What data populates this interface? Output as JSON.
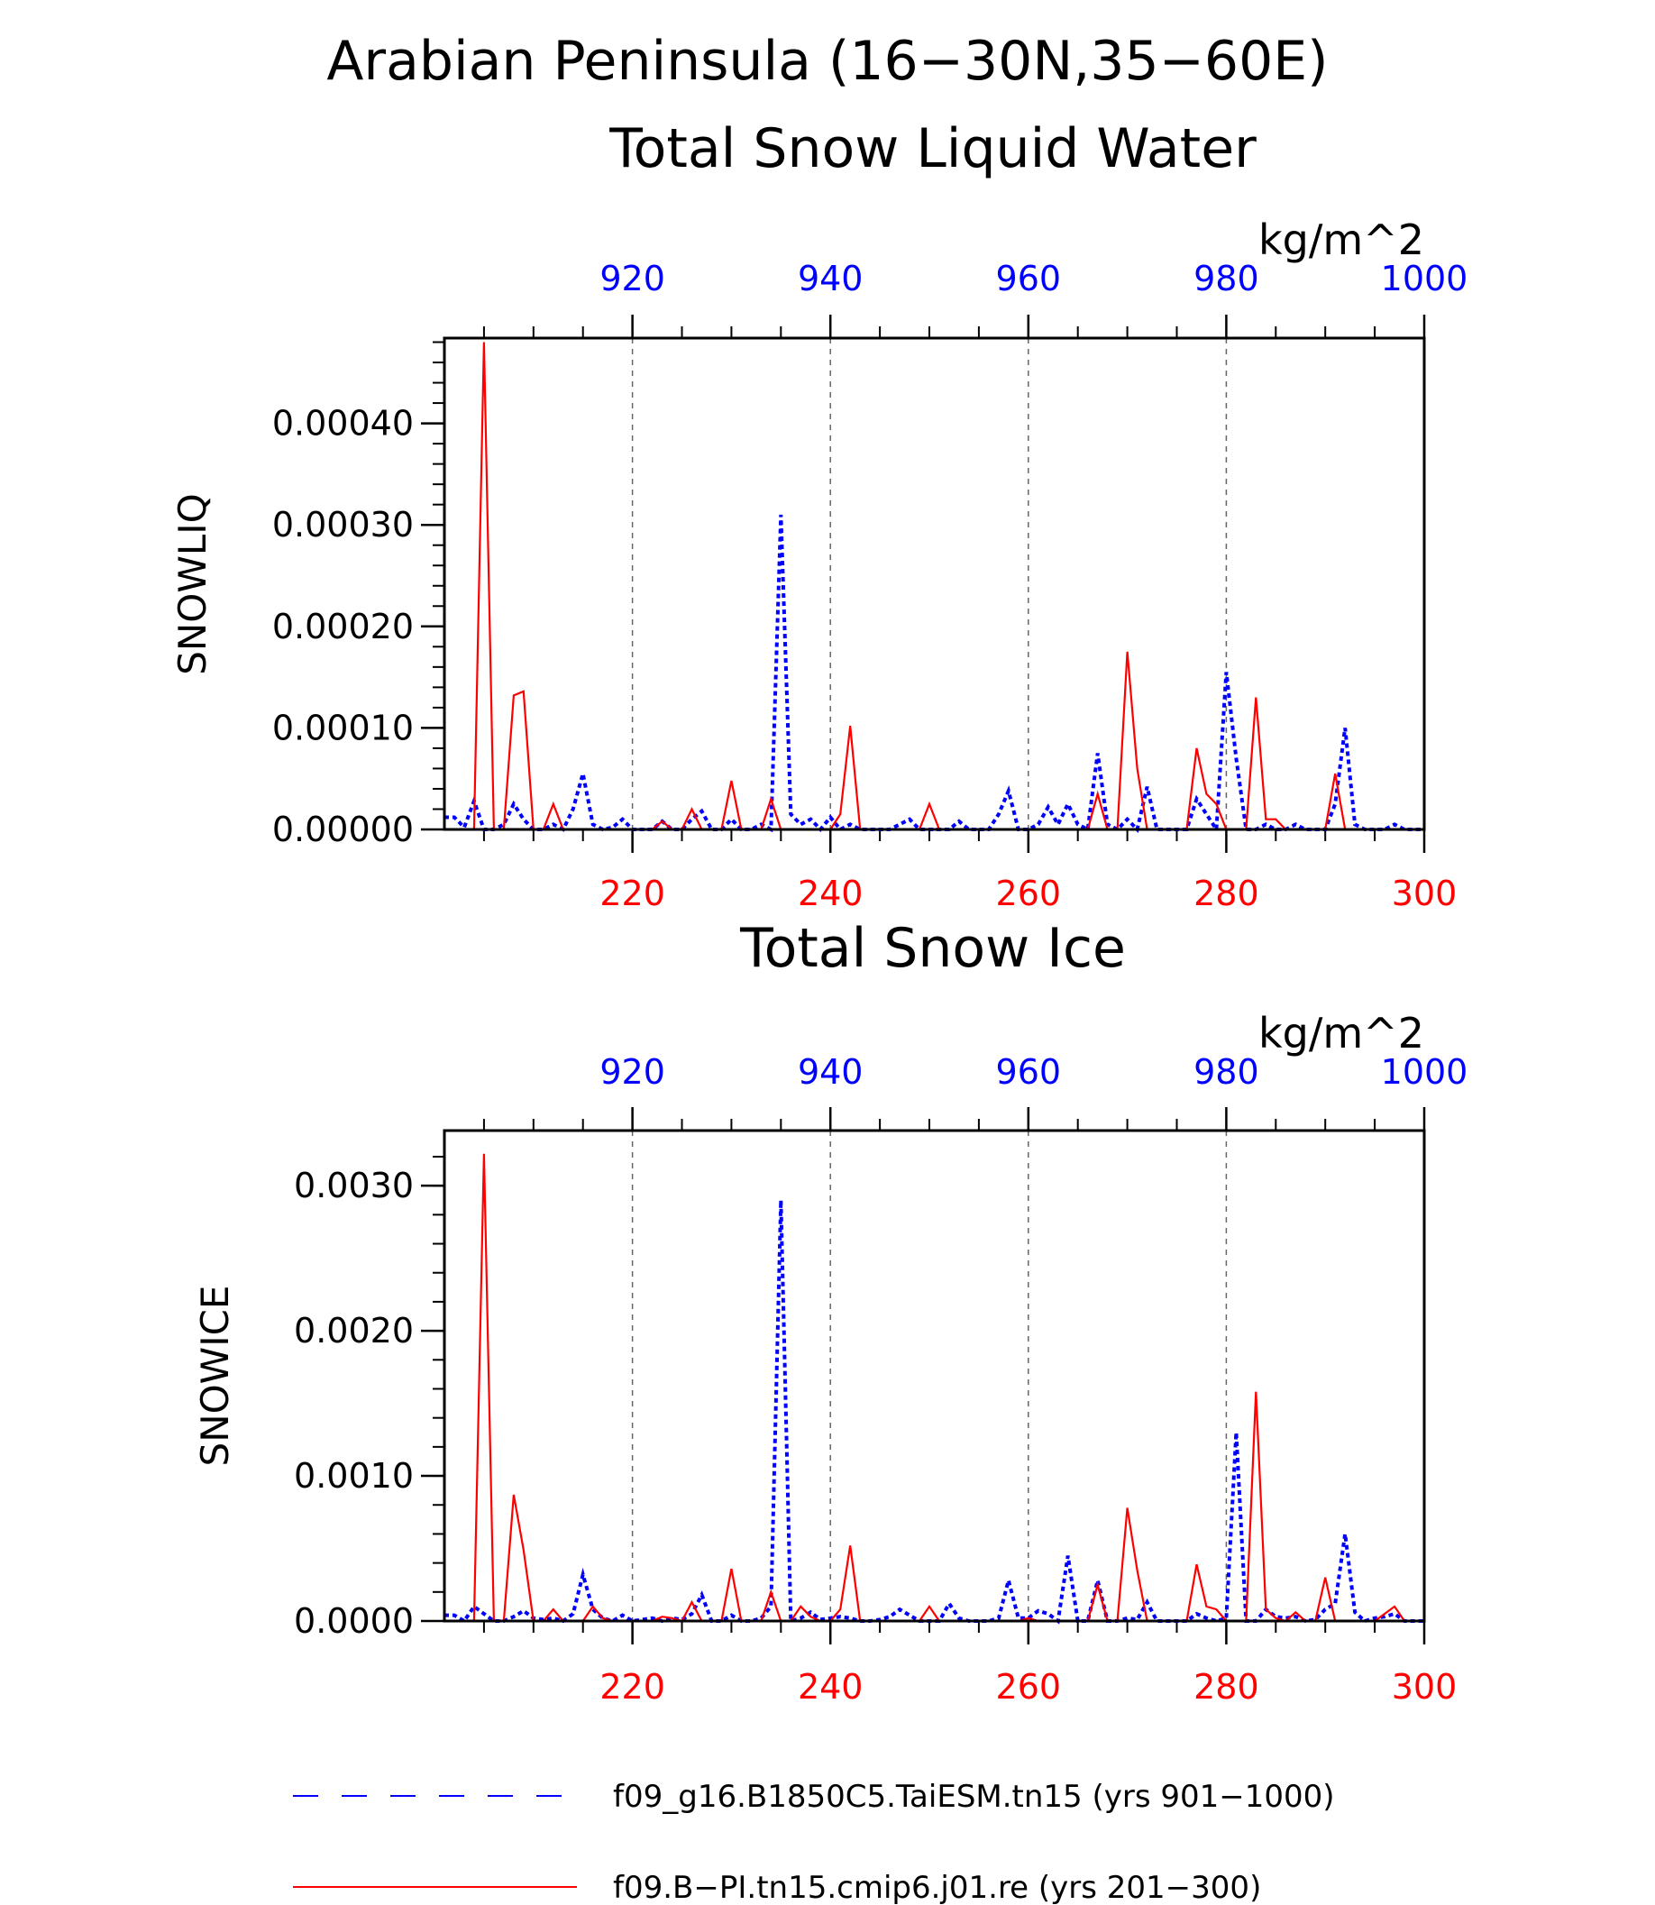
{
  "figure": {
    "title_line1": "Arabian Peninsula (16−30N,35−60E)",
    "colors": {
      "blue": "#0000ff",
      "red": "#ff0000",
      "black": "#000000",
      "grid": "#666666"
    }
  },
  "legend": [
    {
      "label": "f09_g16.B1850C5.TaiESM.tn15 (yrs 901−1000)",
      "color": "#0000ff",
      "style": "dashed"
    },
    {
      "label": "f09.B−PI.tn15.cmip6.j01.re (yrs 201−300)",
      "color": "#ff0000",
      "style": "solid"
    }
  ],
  "chart_data": [
    {
      "type": "line",
      "title": "Total Snow Liquid Water",
      "units": "kg/m^2",
      "ylabel": "SNOWLIQ",
      "ylim": [
        0,
        0.000484
      ],
      "yticks": [
        "0.00000",
        "0.00010",
        "0.00020",
        "0.00030",
        "0.00040"
      ],
      "ytick_values": [
        0,
        0.0001,
        0.0002,
        0.0003,
        0.0004
      ],
      "x_bottom": {
        "lim": [
          201,
          300
        ],
        "ticks": [
          220,
          240,
          260,
          280,
          300
        ],
        "color": "#ff0000"
      },
      "x_top": {
        "lim": [
          901,
          1000
        ],
        "ticks": [
          920,
          940,
          960,
          980,
          1000
        ],
        "color": "#0000ff"
      },
      "grid": "vertical dashed at major x ticks",
      "series": [
        {
          "name": "f09_g16.B1850C5.TaiESM.tn15 (yrs 901−1000)",
          "axis": "top",
          "color": "#0000ff",
          "style": "dashed",
          "x": [
            901,
            902,
            903,
            904,
            905,
            906,
            907,
            908,
            909,
            910,
            911,
            912,
            913,
            914,
            915,
            916,
            917,
            918,
            919,
            920,
            921,
            922,
            923,
            924,
            925,
            926,
            927,
            928,
            929,
            930,
            931,
            932,
            933,
            934,
            935,
            936,
            937,
            938,
            939,
            940,
            941,
            942,
            943,
            944,
            945,
            946,
            947,
            948,
            949,
            950,
            951,
            952,
            953,
            954,
            955,
            956,
            957,
            958,
            959,
            960,
            961,
            962,
            963,
            964,
            965,
            966,
            967,
            968,
            969,
            970,
            971,
            972,
            973,
            974,
            975,
            976,
            977,
            978,
            979,
            980,
            981,
            982,
            983,
            984,
            985,
            986,
            987,
            988,
            989,
            990,
            991,
            992,
            993,
            994,
            995,
            996,
            997,
            998,
            999,
            1000
          ],
          "values": [
            1.2e-05,
            1.2e-05,
            2e-06,
            2.8e-05,
            0,
            0,
            5e-06,
            2.5e-05,
            1e-05,
            0,
            0,
            5e-06,
            0,
            2e-05,
            5.5e-05,
            5e-06,
            0,
            2e-06,
            1e-05,
            0,
            0,
            0,
            8e-06,
            0,
            0,
            1e-05,
            1.8e-05,
            0,
            0,
            1e-05,
            0,
            0,
            5e-06,
            0,
            0.00031,
            1.5e-05,
            5e-06,
            1e-05,
            0,
            1.2e-05,
            0,
            5e-06,
            0,
            0,
            0,
            0,
            5e-06,
            1e-05,
            0,
            0,
            0,
            0,
            8e-06,
            0,
            0,
            0,
            1.5e-05,
            3.8e-05,
            0,
            0,
            5e-06,
            2.2e-05,
            5e-06,
            2.5e-05,
            5e-06,
            0,
            7.5e-05,
            5e-06,
            0,
            1e-05,
            0,
            4.2e-05,
            0,
            0,
            0,
            0,
            3e-05,
            1.5e-05,
            0,
            0.000155,
            7e-05,
            0,
            0,
            5e-06,
            0,
            0,
            5e-06,
            0,
            0,
            0,
            2.5e-05,
            0.0001,
            5e-06,
            0,
            0,
            0,
            5e-06,
            0,
            0,
            0
          ]
        },
        {
          "name": "f09.B−PI.tn15.cmip6.j01.re (yrs 201−300)",
          "axis": "bottom",
          "color": "#ff0000",
          "style": "solid",
          "x": [
            201,
            202,
            203,
            204,
            205,
            206,
            207,
            208,
            209,
            210,
            211,
            212,
            213,
            214,
            215,
            216,
            217,
            218,
            219,
            220,
            221,
            222,
            223,
            224,
            225,
            226,
            227,
            228,
            229,
            230,
            231,
            232,
            233,
            234,
            235,
            236,
            237,
            238,
            239,
            240,
            241,
            242,
            243,
            244,
            245,
            246,
            247,
            248,
            249,
            250,
            251,
            252,
            253,
            254,
            255,
            256,
            257,
            258,
            259,
            260,
            261,
            262,
            263,
            264,
            265,
            266,
            267,
            268,
            269,
            270,
            271,
            272,
            273,
            274,
            275,
            276,
            277,
            278,
            279,
            280,
            281,
            282,
            283,
            284,
            285,
            286,
            287,
            288,
            289,
            290,
            291,
            292,
            293,
            294,
            295,
            296,
            297,
            298,
            299,
            300
          ],
          "values": [
            0,
            0,
            0,
            0,
            0.00048,
            0,
            0,
            0.000132,
            0.000136,
            0,
            0,
            2.5e-05,
            0,
            0,
            0,
            0,
            0,
            0,
            0,
            0,
            0,
            0,
            8e-06,
            0,
            0,
            2e-05,
            0,
            0,
            0,
            4.8e-05,
            0,
            0,
            0,
            3e-05,
            0,
            0,
            0,
            0,
            0,
            0,
            1.5e-05,
            0.000102,
            0,
            0,
            0,
            0,
            0,
            0,
            0,
            2.5e-05,
            0,
            0,
            0,
            0,
            0,
            0,
            0,
            0,
            0,
            0,
            0,
            0,
            0,
            0,
            0,
            0,
            3.5e-05,
            0,
            0,
            0.000175,
            6e-05,
            0,
            0,
            0,
            0,
            0,
            8e-05,
            3.5e-05,
            2.5e-05,
            0,
            0,
            0,
            0.00013,
            1e-05,
            1e-05,
            0,
            0,
            0,
            0,
            0,
            5.5e-05,
            0,
            0,
            0,
            0,
            0,
            0,
            0,
            0,
            0
          ]
        }
      ]
    },
    {
      "type": "line",
      "title": "Total Snow Ice",
      "units": "kg/m^2",
      "ylabel": "SNOWICE",
      "ylim": [
        0,
        0.00338
      ],
      "yticks": [
        "0.0000",
        "0.0010",
        "0.0020",
        "0.0030"
      ],
      "ytick_values": [
        0,
        0.001,
        0.002,
        0.003
      ],
      "x_bottom": {
        "lim": [
          201,
          300
        ],
        "ticks": [
          220,
          240,
          260,
          280,
          300
        ],
        "color": "#ff0000"
      },
      "x_top": {
        "lim": [
          901,
          1000
        ],
        "ticks": [
          920,
          940,
          960,
          980,
          1000
        ],
        "color": "#0000ff"
      },
      "grid": "vertical dashed at major x ticks",
      "series": [
        {
          "name": "f09_g16.B1850C5.TaiESM.tn15 (yrs 901−1000)",
          "axis": "top",
          "color": "#0000ff",
          "style": "dashed",
          "x": [
            901,
            902,
            903,
            904,
            905,
            906,
            907,
            908,
            909,
            910,
            911,
            912,
            913,
            914,
            915,
            916,
            917,
            918,
            919,
            920,
            921,
            922,
            923,
            924,
            925,
            926,
            927,
            928,
            929,
            930,
            931,
            932,
            933,
            934,
            935,
            936,
            937,
            938,
            939,
            940,
            941,
            942,
            943,
            944,
            945,
            946,
            947,
            948,
            949,
            950,
            951,
            952,
            953,
            954,
            955,
            956,
            957,
            958,
            959,
            960,
            961,
            962,
            963,
            964,
            965,
            966,
            967,
            968,
            969,
            970,
            971,
            972,
            973,
            974,
            975,
            976,
            977,
            978,
            979,
            980,
            981,
            982,
            983,
            984,
            985,
            986,
            987,
            988,
            989,
            990,
            991,
            992,
            993,
            994,
            995,
            996,
            997,
            998,
            999,
            1000
          ],
          "values": [
            4e-05,
            4e-05,
            0,
            0.0001,
            5e-05,
            0,
            0,
            3e-05,
            7e-05,
            2e-05,
            1e-05,
            2e-05,
            0,
            5e-05,
            0.00032,
            8e-05,
            2e-05,
            0,
            4e-05,
            0,
            1e-05,
            2e-05,
            0,
            2e-05,
            1e-05,
            5e-05,
            0.00018,
            0,
            0,
            4e-05,
            0,
            0,
            2e-05,
            0.0001,
            0.0029,
            0,
            2e-05,
            6e-05,
            1e-05,
            2e-05,
            3e-05,
            2e-05,
            0,
            0,
            1e-05,
            3e-05,
            8e-05,
            4e-05,
            0,
            0,
            0,
            0.00012,
            2e-05,
            0,
            0,
            0,
            2e-05,
            0.00028,
            2e-05,
            2e-05,
            7e-05,
            5e-05,
            0,
            0.00045,
            0,
            0,
            0.00028,
            0,
            0,
            2e-05,
            1e-05,
            0.00013,
            0,
            0,
            0,
            0,
            5e-05,
            2e-05,
            0,
            2e-05,
            0.0013,
            0,
            0,
            8e-05,
            3e-05,
            2e-05,
            3e-05,
            0,
            1e-05,
            8e-05,
            0.00012,
            0.0006,
            6e-05,
            0,
            2e-05,
            3e-05,
            5e-05,
            0,
            0,
            0
          ]
        },
        {
          "name": "f09.B−PI.tn15.cmip6.j01.re (yrs 201−300)",
          "axis": "bottom",
          "color": "#ff0000",
          "style": "solid",
          "x": [
            201,
            202,
            203,
            204,
            205,
            206,
            207,
            208,
            209,
            210,
            211,
            212,
            213,
            214,
            215,
            216,
            217,
            218,
            219,
            220,
            221,
            222,
            223,
            224,
            225,
            226,
            227,
            228,
            229,
            230,
            231,
            232,
            233,
            234,
            235,
            236,
            237,
            238,
            239,
            240,
            241,
            242,
            243,
            244,
            245,
            246,
            247,
            248,
            249,
            250,
            251,
            252,
            253,
            254,
            255,
            256,
            257,
            258,
            259,
            260,
            261,
            262,
            263,
            264,
            265,
            266,
            267,
            268,
            269,
            270,
            271,
            272,
            273,
            274,
            275,
            276,
            277,
            278,
            279,
            280,
            281,
            282,
            283,
            284,
            285,
            286,
            287,
            288,
            289,
            290,
            291,
            292,
            293,
            294,
            295,
            296,
            297,
            298,
            299,
            300
          ],
          "values": [
            0,
            0,
            0,
            0,
            0.00322,
            0,
            0,
            0.00087,
            0.00049,
            0,
            0,
            8e-05,
            0,
            0,
            0,
            0.0001,
            2e-05,
            0,
            0,
            0,
            0,
            0,
            3e-05,
            2e-05,
            0,
            0.00013,
            0,
            0,
            0,
            0.00036,
            0,
            0,
            0,
            0.0002,
            0,
            0,
            0.0001,
            3e-05,
            0,
            0,
            8e-05,
            0.00052,
            0,
            0,
            0,
            0,
            0,
            0,
            0,
            0.0001,
            0,
            0,
            0,
            0,
            0,
            0,
            0,
            0,
            0,
            2e-05,
            0,
            0,
            0,
            0,
            0,
            0,
            0.00025,
            0,
            0,
            0.00078,
            0.00035,
            0,
            0,
            0,
            0,
            0,
            0.00039,
            0.0001,
            8e-05,
            0,
            0,
            0,
            0.00158,
            8e-05,
            2e-05,
            0,
            6e-05,
            0,
            0,
            0.0003,
            0,
            0,
            0,
            0,
            0,
            5e-05,
            0.0001,
            0,
            0,
            0
          ]
        }
      ]
    }
  ]
}
